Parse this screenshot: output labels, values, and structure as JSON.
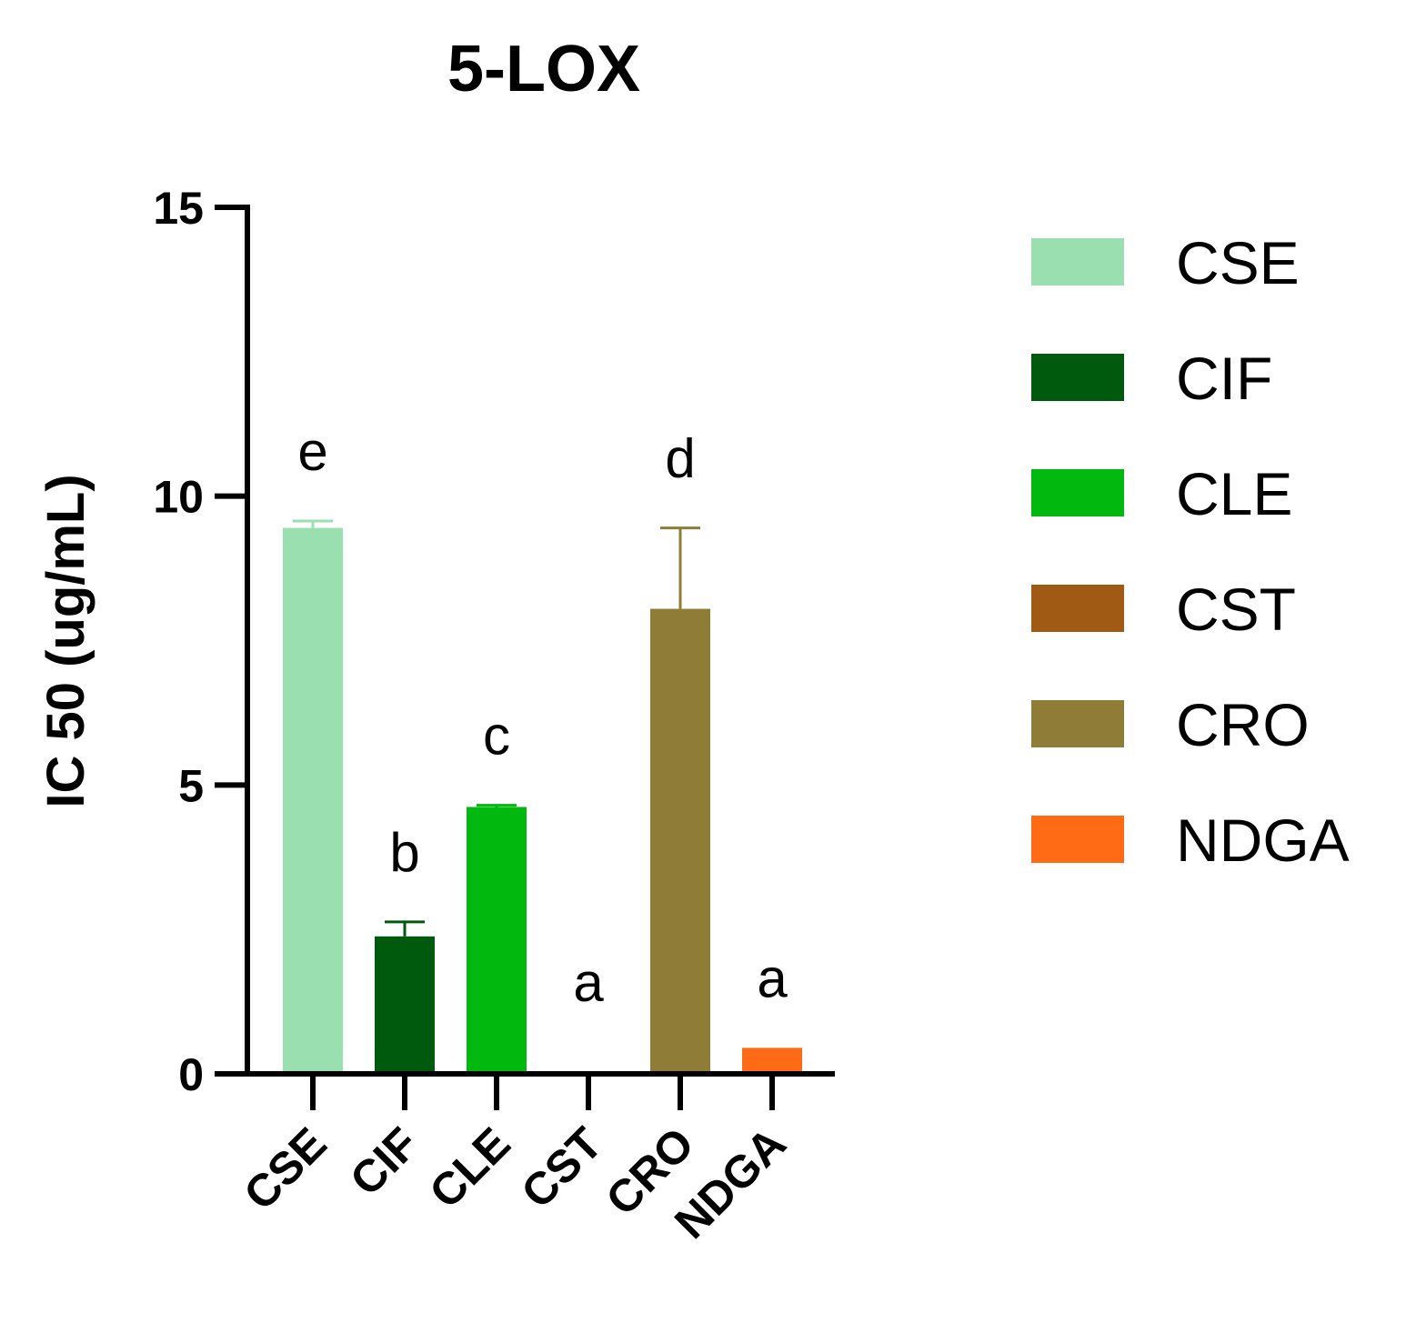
{
  "chart_data": {
    "type": "bar",
    "title": "5-LOX",
    "xlabel": "",
    "ylabel": "IC 50 (ug/mL)",
    "ylim": [
      0,
      15
    ],
    "yticks": [
      "0",
      "5",
      "10",
      "15"
    ],
    "categories": [
      "CSE",
      "CIF",
      "CLE",
      "CST",
      "CRO",
      "NDGA"
    ],
    "values": [
      9.45,
      2.38,
      4.62,
      0.02,
      8.05,
      0.45
    ],
    "errors": [
      0.12,
      0.25,
      0.03,
      0.0,
      1.4,
      0.0
    ],
    "significance": [
      "e",
      "b",
      "c",
      "a",
      "d",
      "a"
    ],
    "colors": [
      "#99dfb0",
      "#005a0e",
      "#00b80e",
      "#a05a14",
      "#8f7c36",
      "#ff6a14"
    ],
    "legend": [
      {
        "label": "CSE",
        "color": "#99dfb0"
      },
      {
        "label": "CIF",
        "color": "#005a0e"
      },
      {
        "label": "CLE",
        "color": "#00b80e"
      },
      {
        "label": "CST",
        "color": "#a05a14"
      },
      {
        "label": "CRO",
        "color": "#8f7c36"
      },
      {
        "label": "NDGA",
        "color": "#ff6a14"
      }
    ],
    "legend_position": "right",
    "grid": false
  }
}
